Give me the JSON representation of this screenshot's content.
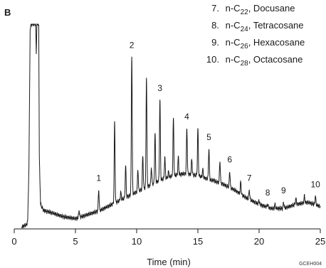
{
  "chart_data": {
    "type": "line",
    "panel_label": "B",
    "xlabel": "Time (min)",
    "ylabel": "",
    "xlim": [
      0,
      25
    ],
    "xticks": [
      0,
      5,
      10,
      15,
      20,
      25
    ],
    "figure_code": "GCEH004",
    "legend": [
      {
        "num": "7.",
        "sub": "22",
        "name": "Docusane"
      },
      {
        "num": "8.",
        "sub": "24",
        "name": "Tetracosane"
      },
      {
        "num": "9.",
        "sub": "26",
        "name": "Hexacosane"
      },
      {
        "num": "10.",
        "sub": "28",
        "name": "Octacosane"
      }
    ],
    "peak_labels": [
      {
        "label": "1",
        "x": 6.9,
        "y": 0.22
      },
      {
        "label": "2",
        "x": 9.6,
        "y": 0.87
      },
      {
        "label": "3",
        "x": 11.9,
        "y": 0.66
      },
      {
        "label": "4",
        "x": 14.1,
        "y": 0.52
      },
      {
        "label": "5",
        "x": 15.9,
        "y": 0.42
      },
      {
        "label": "6",
        "x": 17.6,
        "y": 0.31
      },
      {
        "label": "7",
        "x": 19.2,
        "y": 0.22
      },
      {
        "label": "8",
        "x": 20.7,
        "y": 0.15
      },
      {
        "label": "9",
        "x": 22.0,
        "y": 0.16
      },
      {
        "label": "10",
        "x": 24.6,
        "y": 0.19
      }
    ],
    "baseline": [
      [
        0.6,
        0.01
      ],
      [
        1.0,
        0.02
      ],
      [
        1.1,
        0.04
      ],
      [
        1.2,
        0.3
      ],
      [
        1.3,
        0.98
      ],
      [
        1.4,
        1.0
      ],
      [
        1.6,
        1.0
      ],
      [
        1.75,
        1.0
      ],
      [
        1.8,
        0.85
      ],
      [
        1.85,
        1.0
      ],
      [
        2.0,
        1.0
      ],
      [
        2.05,
        0.35
      ],
      [
        2.15,
        0.12
      ],
      [
        2.4,
        0.09
      ],
      [
        3.0,
        0.08
      ],
      [
        4.0,
        0.06
      ],
      [
        5.0,
        0.05
      ],
      [
        6.0,
        0.07
      ],
      [
        7.0,
        0.09
      ],
      [
        8.0,
        0.12
      ],
      [
        9.0,
        0.15
      ],
      [
        10.0,
        0.18
      ],
      [
        11.0,
        0.21
      ],
      [
        12.0,
        0.24
      ],
      [
        13.0,
        0.26
      ],
      [
        14.0,
        0.27
      ],
      [
        15.0,
        0.26
      ],
      [
        16.0,
        0.24
      ],
      [
        17.0,
        0.22
      ],
      [
        18.0,
        0.19
      ],
      [
        19.0,
        0.15
      ],
      [
        20.0,
        0.12
      ],
      [
        21.0,
        0.1
      ],
      [
        22.0,
        0.1
      ],
      [
        23.0,
        0.12
      ],
      [
        24.0,
        0.13
      ],
      [
        25.0,
        0.11
      ]
    ],
    "peaks": [
      {
        "x": 5.3,
        "y": 0.09
      },
      {
        "x": 6.4,
        "y": 0.07
      },
      {
        "x": 6.9,
        "y": 0.19
      },
      {
        "x": 7.6,
        "y": 0.1
      },
      {
        "x": 8.2,
        "y": 0.52
      },
      {
        "x": 8.7,
        "y": 0.18
      },
      {
        "x": 9.1,
        "y": 0.31
      },
      {
        "x": 9.6,
        "y": 0.85
      },
      {
        "x": 10.1,
        "y": 0.29
      },
      {
        "x": 10.5,
        "y": 0.36
      },
      {
        "x": 10.8,
        "y": 0.74
      },
      {
        "x": 11.2,
        "y": 0.3
      },
      {
        "x": 11.5,
        "y": 0.47
      },
      {
        "x": 11.9,
        "y": 0.63
      },
      {
        "x": 12.3,
        "y": 0.35
      },
      {
        "x": 12.6,
        "y": 0.28
      },
      {
        "x": 13.0,
        "y": 0.54
      },
      {
        "x": 13.4,
        "y": 0.35
      },
      {
        "x": 13.7,
        "y": 0.27
      },
      {
        "x": 14.1,
        "y": 0.49
      },
      {
        "x": 14.5,
        "y": 0.34
      },
      {
        "x": 15.0,
        "y": 0.49
      },
      {
        "x": 15.4,
        "y": 0.29
      },
      {
        "x": 15.9,
        "y": 0.39
      },
      {
        "x": 16.3,
        "y": 0.24
      },
      {
        "x": 16.8,
        "y": 0.33
      },
      {
        "x": 17.6,
        "y": 0.28
      },
      {
        "x": 18.5,
        "y": 0.23
      },
      {
        "x": 19.2,
        "y": 0.19
      },
      {
        "x": 20.0,
        "y": 0.14
      },
      {
        "x": 20.7,
        "y": 0.12
      },
      {
        "x": 21.3,
        "y": 0.12
      },
      {
        "x": 22.0,
        "y": 0.13
      },
      {
        "x": 23.0,
        "y": 0.15
      },
      {
        "x": 23.7,
        "y": 0.16
      },
      {
        "x": 24.6,
        "y": 0.16
      }
    ]
  }
}
